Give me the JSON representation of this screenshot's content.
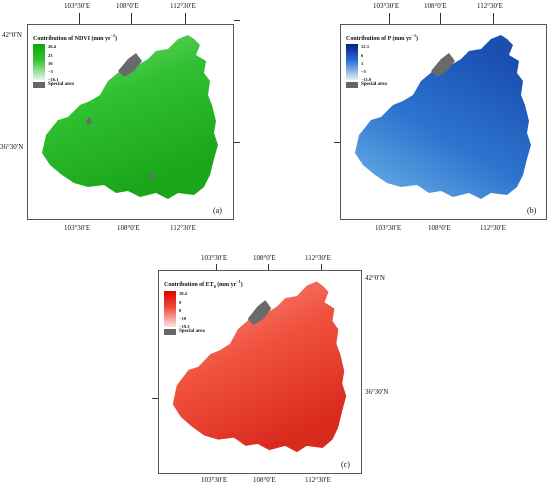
{
  "axes": {
    "top_lon": [
      "103°30′E",
      "108°0′E",
      "112°30′E"
    ],
    "bottom_lon": [
      "103°30′E",
      "108°0′E",
      "112°30′E"
    ],
    "lat": [
      "42°0′N",
      "36°30′N"
    ]
  },
  "panels": [
    {
      "id": "a",
      "tag": "(a)",
      "legend_title_main": "Contribution of NDVI (mm yr",
      "legend_title_sup": "−1",
      "legend_title_end": ")",
      "legend_values": [
        "26.4",
        "23",
        "10",
        "−3",
        "−16.1"
      ],
      "special_label": "Special area",
      "colors": {
        "high": "#0aa80a",
        "mid": "#34c434",
        "low": "#e6f8e6",
        "fill": "#30c030",
        "fill_dark": "#1aa51a",
        "fill_light": "#7edc7e"
      }
    },
    {
      "id": "b",
      "tag": "(b)",
      "legend_title_main": "Contribution of P (mm yr",
      "legend_title_sup": "−1",
      "legend_title_end": ")",
      "legend_values": [
        "12.3",
        "6",
        "1",
        "−5",
        "−11.0"
      ],
      "special_label": "Special area",
      "colors": {
        "high": "#0a1e8c",
        "mid": "#2a6ad0",
        "low": "#dff4fb",
        "fill": "#2d74cf",
        "fill_dark": "#1a4fb0",
        "fill_light": "#6fb4e6"
      }
    },
    {
      "id": "c",
      "tag": "(c)",
      "legend_title_main": "Contribution of ET",
      "legend_title_sub": "0",
      "legend_title_rest": " (mm yr",
      "legend_title_sup": "−1",
      "legend_title_end": ")",
      "legend_values": [
        "18.4",
        "9",
        "0",
        "−10",
        "−19.3"
      ],
      "special_label": "Special area",
      "colors": {
        "high": "#e00000",
        "mid": "#f04a3a",
        "low": "#fde3df",
        "fill": "#f0523f",
        "fill_dark": "#d92a1e",
        "fill_light": "#f7978a"
      }
    }
  ]
}
